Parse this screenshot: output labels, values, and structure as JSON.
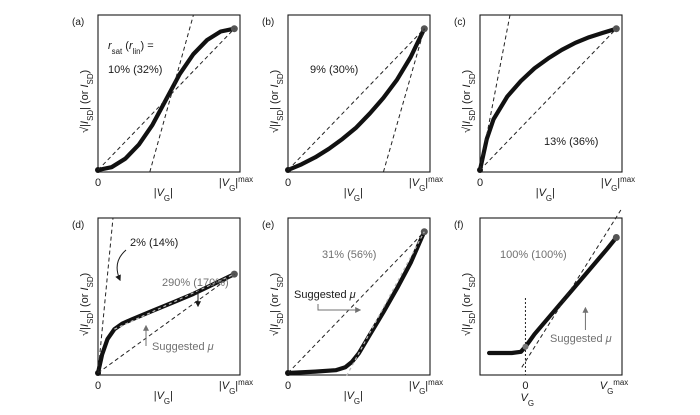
{
  "chart_data": [
    {
      "panel": "(a)",
      "type": "line",
      "description_label_1": "r",
      "ratio_lines": [
        "10% (32%)"
      ],
      "ratio_header": "r_sat (r_lin) =",
      "x_axis": {
        "origin": "0",
        "label": "|V_G|",
        "max_label": "|V_G|max"
      },
      "y_axis": {
        "label": "√|I_SD| (or I_SD)"
      },
      "curve": {
        "x": [
          0,
          0.1,
          0.2,
          0.3,
          0.4,
          0.5,
          0.6,
          0.7,
          0.8,
          0.9,
          1.0
        ],
        "y": [
          0,
          0.02,
          0.08,
          0.18,
          0.32,
          0.5,
          0.68,
          0.82,
          0.92,
          0.98,
          1.0
        ]
      },
      "dashed_lines": [
        "secant from origin to max",
        "tangent at steepest point"
      ]
    },
    {
      "panel": "(b)",
      "type": "line",
      "ratio_lines": [
        "9% (30%)"
      ],
      "x_axis": {
        "origin": "0",
        "label": "|V_G|",
        "max_label": "|V_G|max"
      },
      "y_axis": {
        "label": "√|I_SD| (or I_SD)"
      },
      "curve": {
        "x": [
          0,
          0.1,
          0.2,
          0.3,
          0.4,
          0.5,
          0.6,
          0.7,
          0.8,
          0.9,
          1.0
        ],
        "y": [
          0,
          0.04,
          0.09,
          0.15,
          0.22,
          0.3,
          0.4,
          0.51,
          0.64,
          0.8,
          1.0
        ]
      },
      "dashed_lines": [
        "secant from origin to max",
        "tangent at max"
      ]
    },
    {
      "panel": "(c)",
      "type": "line",
      "ratio_lines": [
        "13% (36%)"
      ],
      "x_axis": {
        "origin": "0",
        "label": "|V_G|",
        "max_label": "|V_G|max"
      },
      "y_axis": {
        "label": "√|I_SD| (or I_SD)"
      },
      "curve": {
        "x": [
          0,
          0.05,
          0.1,
          0.2,
          0.3,
          0.4,
          0.5,
          0.6,
          0.7,
          0.8,
          0.9,
          1.0
        ],
        "y": [
          0,
          0.22,
          0.36,
          0.52,
          0.63,
          0.72,
          0.79,
          0.85,
          0.9,
          0.94,
          0.97,
          1.0
        ]
      },
      "dashed_lines": [
        "secant from origin to max",
        "tangent at origin"
      ]
    },
    {
      "panel": "(d)",
      "type": "line",
      "ratio_lines": [
        "2% (14%)",
        "290% (170%)"
      ],
      "annotation": "Suggested μ",
      "x_axis": {
        "origin": "0",
        "label": "|V_G|",
        "max_label": "|V_G|max"
      },
      "y_axis": {
        "label": "√|I_SD| (or I_SD)"
      },
      "curve": {
        "x": [
          0,
          0.03,
          0.07,
          0.12,
          0.18,
          0.25,
          0.4,
          0.55,
          0.7,
          0.85,
          1.0
        ],
        "y": [
          0,
          0.13,
          0.24,
          0.31,
          0.35,
          0.38,
          0.44,
          0.5,
          0.56,
          0.63,
          0.7
        ]
      },
      "dashed_lines": [
        "secant from origin to max",
        "steep tangent at origin",
        "fit along linear segment"
      ]
    },
    {
      "panel": "(e)",
      "type": "line",
      "ratio_lines": [
        "31% (56%)"
      ],
      "annotation": "Suggested μ",
      "x_axis": {
        "origin": "0",
        "label": "|V_G|",
        "max_label": "|V_G|max"
      },
      "y_axis": {
        "label": "√|I_SD| (or I_SD)"
      },
      "curve": {
        "x": [
          0,
          0.2,
          0.35,
          0.42,
          0.47,
          0.52,
          0.6,
          0.7,
          0.8,
          0.9,
          1.0
        ],
        "y": [
          0,
          0.01,
          0.02,
          0.04,
          0.08,
          0.14,
          0.27,
          0.43,
          0.6,
          0.78,
          1.0
        ]
      },
      "dashed_lines": [
        "secant from origin to max",
        "fit along linear segment"
      ]
    },
    {
      "panel": "(f)",
      "type": "line",
      "ratio_lines": [
        "100% (100%)"
      ],
      "annotation": "Suggested μ",
      "x_axis": {
        "origin": "0",
        "label": "V_G",
        "max_label": "V_G max"
      },
      "y_axis": {
        "label": "√|I_SD| (or I_SD)"
      },
      "curve": {
        "x": [
          -0.4,
          -0.15,
          -0.05,
          0.0,
          0.05,
          0.1,
          0.3,
          0.5,
          0.7,
          0.9,
          1.0
        ],
        "y": [
          0,
          0,
          0.01,
          0.05,
          0.1,
          0.15,
          0.32,
          0.49,
          0.66,
          0.83,
          0.92
        ]
      },
      "dashed_lines": [
        "linear extrapolation through threshold"
      ]
    }
  ]
}
